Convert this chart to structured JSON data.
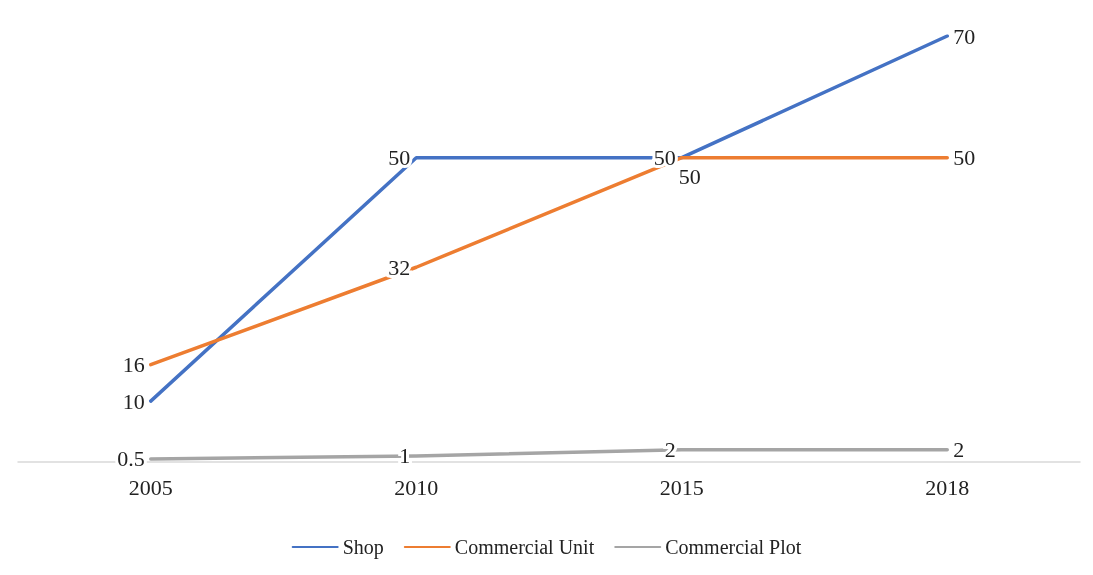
{
  "chart_data": {
    "type": "line",
    "categories": [
      "2005",
      "2010",
      "2015",
      "2018"
    ],
    "series": [
      {
        "name": "Shop",
        "color": "#4472c4",
        "values": [
          10,
          50,
          50,
          70
        ]
      },
      {
        "name": "Commercial Unit",
        "color": "#ed7d31",
        "values": [
          16,
          32,
          50,
          50
        ]
      },
      {
        "name": "Commercial Plot",
        "color": "#a5a5a5",
        "values": [
          0.5,
          1,
          2,
          2
        ]
      }
    ],
    "data_labels": true,
    "legend": "bottom",
    "grid": false,
    "marker": "none",
    "line_style": "solid"
  }
}
